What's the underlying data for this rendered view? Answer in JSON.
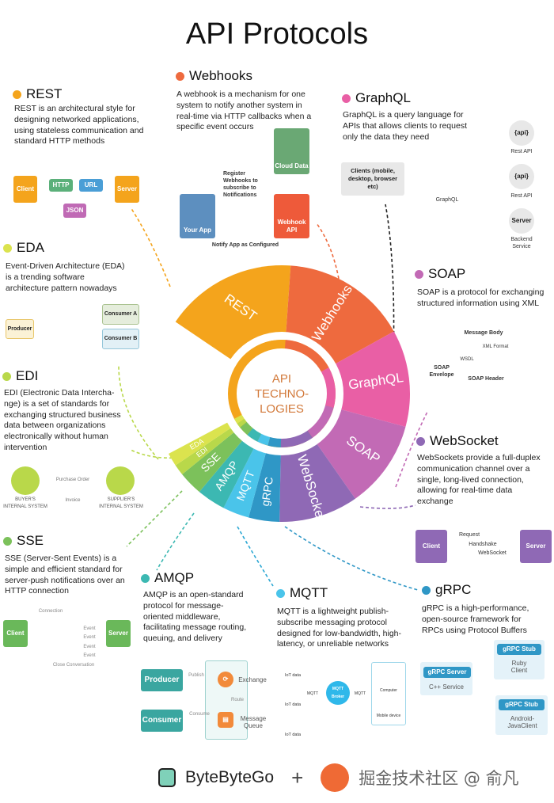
{
  "title": "API Protocols",
  "center_label": [
    "API",
    "TECHNO-",
    "LOGIES"
  ],
  "colors": {
    "REST": "#f4a41c",
    "Webhooks": "#ee6a3e",
    "GraphQL": "#e95fa5",
    "SOAP": "#c26ab5",
    "WebSocket": "#8f69b5",
    "gRPC": "#2f97c6",
    "MQTT": "#4ac4ea",
    "AMQP": "#3cb8b2",
    "SSE": "#7cc15b",
    "EDI": "#b9d84a",
    "EDA": "#dbe34e"
  },
  "wheel": [
    "REST",
    "Webhooks",
    "GraphQL",
    "SOAP",
    "WebSocket",
    "gRPC",
    "MQTT",
    "AMQP",
    "SSE",
    "EDI",
    "EDA"
  ],
  "sections": {
    "rest": {
      "name": "REST",
      "text": [
        "REST is an architectural style for",
        "designing networked applications,",
        "using stateless communication and",
        "standard HTTP methods"
      ],
      "diagram": {
        "client": "Client",
        "http": "HTTP",
        "url": "URL",
        "server": "Server",
        "json": "JSON"
      }
    },
    "webhooks": {
      "name": "Webhooks",
      "text": [
        "A webhook is a mechanism for one",
        "system to notify another system in",
        "real-time via HTTP callbacks when a",
        "specific event occurs"
      ],
      "diagram": {
        "cloud": "Cloud Data",
        "app": "Your App",
        "api": "Webhook API",
        "register": "Register Webhooks to subscribe to Notifications",
        "notify": "Notify App as Configured"
      }
    },
    "graphql": {
      "name": "GraphQL",
      "text": [
        "GraphQL is a query language for",
        "APIs that allows clients to request",
        "only the data they need"
      ],
      "diagram": {
        "clients": "Clients (mobile, desktop, browser etc)",
        "graphql": "GraphQL",
        "api1": "{api}",
        "api1_label": "Rest API",
        "api2": "{api}",
        "api2_label": "Rest API",
        "server": "Server",
        "server_label": "Backend Service"
      }
    },
    "soap": {
      "name": "SOAP",
      "text": [
        "SOAP is a protocol for exchanging",
        "structured information using XML"
      ],
      "diagram": {
        "body": "Message Body",
        "xml": "XML Format",
        "wsdl": "WSDL",
        "envelope": "SOAP Envelope",
        "header": "SOAP Header",
        "http": "HTTP Protocol"
      }
    },
    "eda": {
      "name": "EDA",
      "text": [
        "Event-Driven Architecture (EDA)",
        "is a trending software",
        "architecture pattern nowadays"
      ],
      "diagram": {
        "producer": "Producer",
        "a": "Consumer A",
        "b": "Consumer B"
      }
    },
    "edi": {
      "name": "EDI",
      "text": [
        "EDI (Electronic Data Intercha-",
        "nge) is a set of standards for",
        "exchanging structured business",
        "data between organizations",
        "electronically without human",
        "intervention"
      ],
      "diagram": {
        "po": "Purchase Order",
        "invoice": "Invoice",
        "buyer": "BUYER'S INTERNAL SYSTEM",
        "supplier": "SUPPLIER'S INTERNAL SYSTEM"
      }
    },
    "websocket": {
      "name": "WebSocket",
      "text": [
        "WebSockets provide a full-duplex",
        "communication channel over a",
        "single, long-lived connection,",
        "allowing for real-time data",
        "exchange"
      ],
      "diagram": {
        "client": "Client",
        "server": "Server",
        "request": "Request",
        "handshake": "Handshake",
        "ws": "WebSocket"
      }
    },
    "sse": {
      "name": "SSE",
      "text": [
        "SSE (Server-Sent Events) is a",
        "simple and efficient standard for",
        "server-push notifications over an",
        "HTTP connection"
      ],
      "diagram": {
        "client": "Client",
        "server": "Server",
        "connection": "Connection",
        "event": "Event",
        "close": "Close Conversation"
      }
    },
    "amqp": {
      "name": "AMQP",
      "text": [
        "AMQP is an open-standard",
        "protocol for message-",
        "oriented middleware,",
        "facilitating message routing,",
        "queuing, and delivery"
      ],
      "diagram": {
        "producer": "Producer",
        "consumer": "Consumer",
        "publish": "Publish",
        "exchange": "Exchange",
        "route": "Route",
        "consume": "Consume",
        "queue": "Message Queue"
      }
    },
    "mqtt": {
      "name": "MQTT",
      "text": [
        "MQTT is a lightweight publish-",
        "subscribe messaging protocol",
        "designed for low-bandwidth, high-",
        "latency, or unreliable networks"
      ],
      "diagram": {
        "iot": "IoT data",
        "mqtt": "MQTT",
        "broker": "MQTT Broker",
        "computer": "Computer",
        "mobile": "Mobile device"
      }
    },
    "grpc": {
      "name": "gRPC",
      "text": [
        "gRPC is a high-performance,",
        "open-source framework for",
        "RPCs using Protocol Buffers"
      ],
      "diagram": {
        "server": "gRPC Server",
        "service": "C++ Service",
        "stub1": "gRPC Stub",
        "client1": "Ruby Client",
        "stub2": "gRPC Stub",
        "client2": "Android-JavaClient"
      }
    }
  },
  "footer": {
    "brand": "ByteByteGo",
    "plus": "+",
    "watermark": "掘金技术社区 @ 俞凡"
  }
}
